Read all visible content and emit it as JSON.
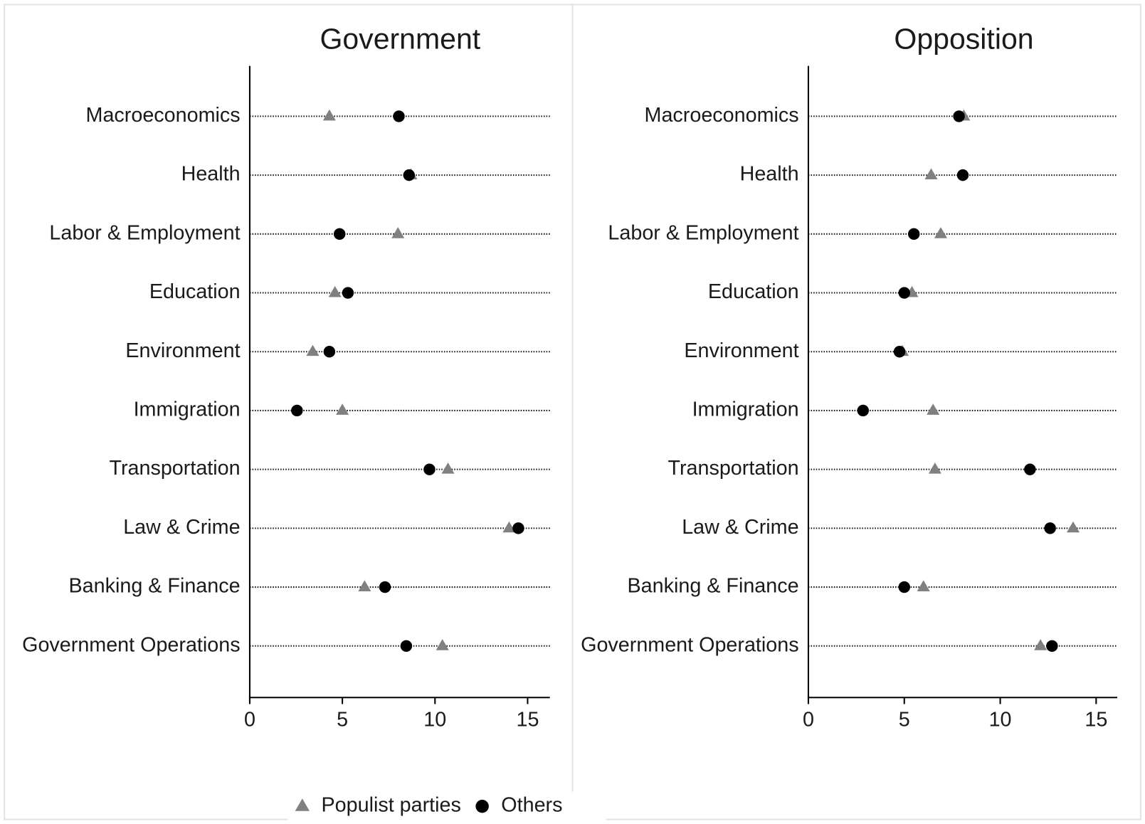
{
  "chart_data": [
    {
      "type": "dot",
      "title": "Government",
      "categories": [
        "Macroeconomics",
        "Health",
        "Labor & Employment",
        "Education",
        "Environment",
        "Immigration",
        "Transportation",
        "Law & Crime",
        "Banking & Finance",
        "Government Operations"
      ],
      "series": [
        {
          "name": "Populist parties",
          "color": "#808080",
          "marker": "triangle",
          "values": [
            4.3,
            8.7,
            8.0,
            4.6,
            3.4,
            5.0,
            10.7,
            14.0,
            6.2,
            10.4
          ]
        },
        {
          "name": "Others",
          "color": "#000000",
          "marker": "circle",
          "values": [
            8.05,
            8.6,
            4.85,
            5.3,
            4.3,
            2.55,
            9.7,
            14.5,
            7.3,
            8.45
          ]
        }
      ],
      "xlim": [
        0,
        16.2
      ],
      "xticks": [
        0,
        5,
        10,
        15
      ],
      "legend": "bottom"
    },
    {
      "type": "dot",
      "title": "Opposition",
      "categories": [
        "Macroeconomics",
        "Health",
        "Labor & Employment",
        "Education",
        "Environment",
        "Immigration",
        "Transportation",
        "Law & Crime",
        "Banking & Finance",
        "Government Operations"
      ],
      "series": [
        {
          "color": "#808080",
          "marker": "triangle",
          "values": [
            8.1,
            6.4,
            6.9,
            5.4,
            4.9,
            6.5,
            6.6,
            13.8,
            6.0,
            12.1
          ]
        },
        {
          "color": "#000000",
          "marker": "circle",
          "values": [
            7.85,
            8.05,
            5.5,
            5.0,
            4.75,
            2.85,
            11.55,
            12.6,
            5.0,
            12.7
          ]
        }
      ],
      "xlim": [
        0,
        16.1
      ],
      "xticks": [
        0,
        5,
        10,
        15
      ]
    }
  ]
}
